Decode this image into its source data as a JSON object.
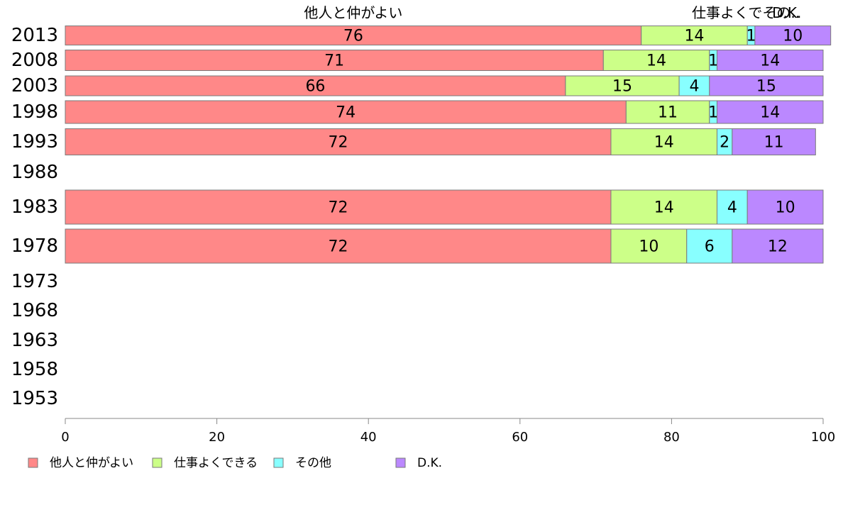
{
  "chart_data": {
    "type": "bar",
    "orientation": "horizontal",
    "stacked": true,
    "categories": [
      "2013",
      "2008",
      "2003",
      "1998",
      "1993",
      "1988",
      "1983",
      "1978",
      "1973",
      "1968",
      "1963",
      "1958",
      "1953"
    ],
    "series": [
      {
        "name": "他人と仲がよい",
        "color": "#ff8888",
        "values": [
          76,
          71,
          66,
          74,
          72,
          null,
          72,
          72,
          null,
          null,
          null,
          null,
          null
        ]
      },
      {
        "name": "仕事よくできる",
        "color": "#ccff88",
        "values": [
          14,
          14,
          15,
          11,
          14,
          null,
          14,
          10,
          null,
          null,
          null,
          null,
          null
        ]
      },
      {
        "name": "その他",
        "color": "#88ffff",
        "values": [
          1,
          1,
          4,
          1,
          2,
          null,
          4,
          6,
          null,
          null,
          null,
          null,
          null
        ]
      },
      {
        "name": "D.K.",
        "color": "#bb88ff",
        "values": [
          10,
          14,
          15,
          14,
          11,
          null,
          10,
          12,
          null,
          null,
          null,
          null,
          null
        ]
      }
    ],
    "top_labels": [
      "他人と仲がよい",
      "仕事よくでその..",
      "D.K."
    ],
    "xlim": [
      0,
      100
    ],
    "xticks": [
      "0",
      "20",
      "40",
      "60",
      "80",
      "100"
    ],
    "legend_position": "bottom-left",
    "grid": false
  }
}
